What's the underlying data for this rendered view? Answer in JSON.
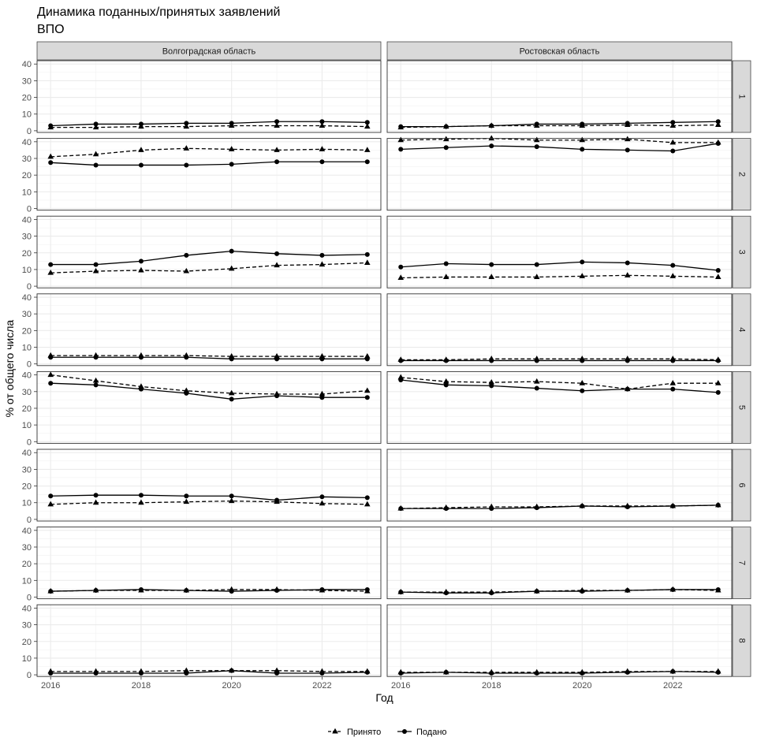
{
  "chart_data": {
    "type": "line",
    "title": "Динамика поданных/принятых заявлений\nВПО",
    "xlabel": "Год",
    "ylabel": "% от общего числа",
    "x": [
      2016,
      2017,
      2018,
      2019,
      2020,
      2021,
      2022,
      2023
    ],
    "xticks": [
      2016,
      2018,
      2020,
      2022
    ],
    "yticks": [
      0,
      10,
      20,
      30,
      40
    ],
    "ylim": [
      -1,
      42
    ],
    "xlim": [
      2015.7,
      2023.3
    ],
    "columns": [
      "Волгоградская область",
      "Ростовская область"
    ],
    "rows": [
      "1",
      "2",
      "3",
      "4",
      "5",
      "6",
      "7",
      "8"
    ],
    "grid": true,
    "legend_position": "bottom",
    "series_styles": [
      {
        "name": "Принято",
        "line": "dashed",
        "marker": "triangle",
        "color": "#000000"
      },
      {
        "name": "Подано",
        "line": "solid",
        "marker": "circle",
        "color": "#000000"
      }
    ],
    "panels": [
      {
        "column": "Волгоградская область",
        "row": "1",
        "series": [
          {
            "name": "Принято",
            "values": [
              2.0,
              2.0,
              2.5,
              2.5,
              3.0,
              3.0,
              3.0,
              2.5
            ]
          },
          {
            "name": "Подано",
            "values": [
              3.0,
              4.0,
              4.0,
              4.5,
              4.5,
              5.5,
              5.5,
              5.0
            ]
          }
        ]
      },
      {
        "column": "Ростовская область",
        "row": "1",
        "series": [
          {
            "name": "Принято",
            "values": [
              2.0,
              2.5,
              3.0,
              3.0,
              3.0,
              3.5,
              3.0,
              3.5
            ]
          },
          {
            "name": "Подано",
            "values": [
              2.5,
              2.5,
              3.0,
              4.0,
              4.0,
              4.5,
              5.0,
              5.5
            ]
          }
        ]
      },
      {
        "column": "Волгоградская область",
        "row": "2",
        "series": [
          {
            "name": "Принято",
            "values": [
              31.0,
              32.5,
              35.0,
              36.0,
              35.5,
              35.0,
              35.5,
              35.0
            ]
          },
          {
            "name": "Подано",
            "values": [
              27.5,
              26.0,
              26.0,
              26.0,
              26.5,
              28.0,
              28.0,
              28.0
            ]
          }
        ]
      },
      {
        "column": "Ростовская область",
        "row": "2",
        "series": [
          {
            "name": "Принято",
            "values": [
              41.0,
              41.5,
              42.0,
              41.0,
              41.0,
              41.5,
              39.5,
              39.5
            ]
          },
          {
            "name": "Подано",
            "values": [
              35.5,
              36.5,
              37.5,
              37.0,
              35.5,
              35.0,
              34.5,
              39.0
            ]
          }
        ]
      },
      {
        "column": "Волгоградская область",
        "row": "3",
        "series": [
          {
            "name": "Принято",
            "values": [
              8.0,
              9.0,
              9.5,
              9.0,
              10.5,
              12.5,
              13.0,
              14.0
            ]
          },
          {
            "name": "Подано",
            "values": [
              13.0,
              13.0,
              15.0,
              18.5,
              21.0,
              19.5,
              18.5,
              19.0
            ]
          }
        ]
      },
      {
        "column": "Ростовская область",
        "row": "3",
        "series": [
          {
            "name": "Принято",
            "values": [
              5.0,
              5.5,
              5.5,
              5.5,
              6.0,
              6.5,
              6.0,
              5.5
            ]
          },
          {
            "name": "Подано",
            "values": [
              11.5,
              13.5,
              13.0,
              13.0,
              14.5,
              14.0,
              12.5,
              9.5
            ]
          }
        ]
      },
      {
        "column": "Волгоградская область",
        "row": "4",
        "series": [
          {
            "name": "Принято",
            "values": [
              5.0,
              5.0,
              5.0,
              5.0,
              4.5,
              4.5,
              4.5,
              4.5
            ]
          },
          {
            "name": "Подано",
            "values": [
              4.0,
              4.0,
              4.0,
              4.0,
              3.0,
              3.0,
              3.0,
              3.0
            ]
          }
        ]
      },
      {
        "column": "Ростовская область",
        "row": "4",
        "series": [
          {
            "name": "Принято",
            "values": [
              2.5,
              2.5,
              3.0,
              3.0,
              3.0,
              3.0,
              3.0,
              2.5
            ]
          },
          {
            "name": "Подано",
            "values": [
              2.0,
              2.0,
              2.0,
              2.0,
              2.0,
              2.0,
              2.0,
              2.0
            ]
          }
        ]
      },
      {
        "column": "Волгоградская область",
        "row": "5",
        "series": [
          {
            "name": "Принято",
            "values": [
              40.0,
              36.5,
              33.0,
              30.5,
              29.0,
              28.5,
              28.5,
              30.5
            ]
          },
          {
            "name": "Подано",
            "values": [
              35.0,
              34.0,
              31.5,
              29.0,
              25.5,
              27.5,
              26.5,
              26.5
            ]
          }
        ]
      },
      {
        "column": "Ростовская область",
        "row": "5",
        "series": [
          {
            "name": "Принято",
            "values": [
              38.5,
              36.0,
              35.5,
              36.0,
              35.0,
              31.5,
              35.0,
              35.0
            ]
          },
          {
            "name": "Подано",
            "values": [
              37.0,
              34.0,
              33.5,
              32.0,
              30.5,
              31.5,
              31.5,
              29.5
            ]
          }
        ]
      },
      {
        "column": "Волгоградская область",
        "row": "6",
        "series": [
          {
            "name": "Принято",
            "values": [
              9.0,
              10.0,
              10.0,
              10.5,
              11.0,
              10.5,
              9.5,
              9.0
            ]
          },
          {
            "name": "Подано",
            "values": [
              14.0,
              14.5,
              14.5,
              14.0,
              14.0,
              11.5,
              13.5,
              13.0
            ]
          }
        ]
      },
      {
        "column": "Ростовская область",
        "row": "6",
        "series": [
          {
            "name": "Принято",
            "values": [
              6.5,
              7.0,
              7.5,
              7.5,
              8.0,
              8.0,
              8.0,
              8.5
            ]
          },
          {
            "name": "Подано",
            "values": [
              6.5,
              6.5,
              6.5,
              7.0,
              8.0,
              7.5,
              8.0,
              8.5
            ]
          }
        ]
      },
      {
        "column": "Волгоградская область",
        "row": "7",
        "series": [
          {
            "name": "Принято",
            "values": [
              3.5,
              4.0,
              4.0,
              4.0,
              4.5,
              4.5,
              4.0,
              3.5
            ]
          },
          {
            "name": "Подано",
            "values": [
              3.5,
              4.0,
              4.5,
              4.0,
              3.5,
              4.0,
              4.5,
              4.5
            ]
          }
        ]
      },
      {
        "column": "Ростовская область",
        "row": "7",
        "series": [
          {
            "name": "Принято",
            "values": [
              3.0,
              3.0,
              3.0,
              3.5,
              4.0,
              4.0,
              4.5,
              4.0
            ]
          },
          {
            "name": "Подано",
            "values": [
              3.0,
              2.5,
              2.5,
              3.5,
              3.5,
              4.0,
              4.5,
              4.5
            ]
          }
        ]
      },
      {
        "column": "Волгоградская область",
        "row": "8",
        "series": [
          {
            "name": "Принято",
            "values": [
              2.0,
              2.0,
              2.0,
              2.5,
              2.5,
              2.5,
              2.0,
              2.0
            ]
          },
          {
            "name": "Подано",
            "values": [
              1.0,
              1.0,
              1.0,
              1.0,
              2.5,
              1.0,
              1.0,
              1.5
            ]
          }
        ]
      },
      {
        "column": "Ростовская область",
        "row": "8",
        "series": [
          {
            "name": "Принято",
            "values": [
              1.5,
              1.5,
              1.5,
              1.5,
              1.5,
              2.0,
              2.0,
              2.0
            ]
          },
          {
            "name": "Подано",
            "values": [
              1.0,
              1.5,
              1.0,
              1.0,
              1.0,
              1.5,
              2.0,
              1.5
            ]
          }
        ]
      }
    ]
  }
}
